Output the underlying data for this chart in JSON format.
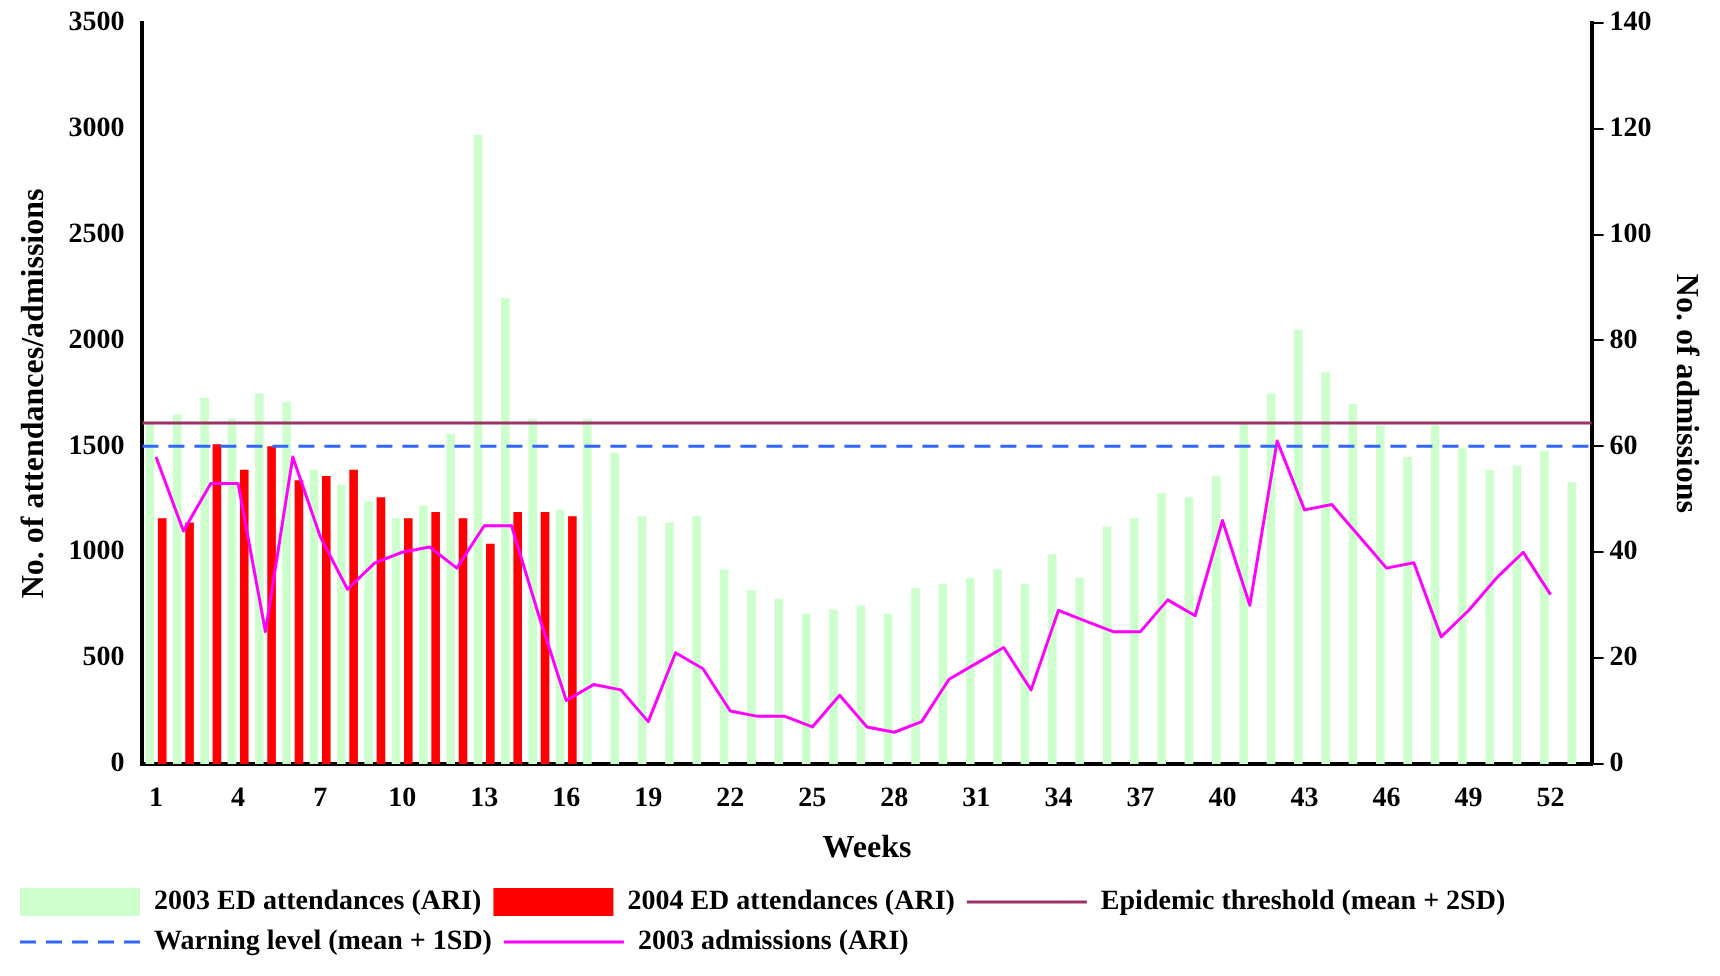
{
  "chart_data": {
    "type": "bar",
    "xlabel": "Weeks",
    "ylabel": "No. of attendances/admissions",
    "y2label": "No. of admissions",
    "categories": [
      "1",
      null,
      null,
      "4",
      null,
      null,
      "7",
      null,
      null,
      "10",
      null,
      null,
      "13",
      null,
      null,
      "16",
      null,
      null,
      "19",
      null,
      null,
      "22",
      null,
      null,
      "25",
      null,
      null,
      "28",
      null,
      null,
      "31",
      null,
      null,
      "34",
      null,
      null,
      "37",
      null,
      null,
      "40",
      null,
      null,
      "43",
      null,
      null,
      "46",
      null,
      null,
      "49",
      null,
      null,
      "52",
      null
    ],
    "series": [
      {
        "name": "2003 ED attendances (ARI)",
        "color": "#ccffcc",
        "values": [
          1610,
          1650,
          1730,
          1630,
          1750,
          1710,
          1390,
          1320,
          1240,
          1160,
          1220,
          1560,
          2970,
          2200,
          1630,
          1200,
          1630,
          1470,
          1170,
          1140,
          1170,
          920,
          820,
          780,
          710,
          730,
          750,
          710,
          830,
          850,
          880,
          920,
          850,
          990,
          880,
          1120,
          1160,
          1280,
          1260,
          1360,
          1610,
          1750,
          2050,
          1850,
          1700,
          1600,
          1450,
          1600,
          1490,
          1390,
          1410,
          1480,
          1330
        ]
      },
      {
        "name": "2004 ED attendances (ARI)",
        "color": "#ff0000",
        "values": [
          1160,
          1140,
          1510,
          1390,
          1500,
          1340,
          1360,
          1390,
          1260,
          1160,
          1190,
          1160,
          1040,
          1190,
          1190,
          1170,
          null,
          null,
          null,
          null,
          null,
          null,
          null,
          null,
          null,
          null,
          null,
          null,
          null,
          null,
          null,
          null,
          null,
          null,
          null,
          null,
          null,
          null,
          null,
          null,
          null,
          null,
          null,
          null,
          null,
          null,
          null,
          null,
          null,
          null,
          null,
          null,
          null
        ]
      },
      {
        "name": "2003 admissions (ARI)",
        "type": "line",
        "axis": "y2",
        "color": "#ff00ff",
        "marker": "none",
        "values": [
          58,
          44,
          53,
          53,
          25,
          58,
          43,
          33,
          38,
          40,
          41,
          37,
          45,
          45,
          28,
          12,
          15,
          14,
          8,
          21,
          18,
          10,
          9,
          9,
          7,
          13,
          7,
          6,
          8,
          16,
          19,
          22,
          14,
          29,
          27,
          25,
          25,
          31,
          28,
          46,
          30,
          61,
          48,
          49,
          43,
          37,
          38,
          24,
          29,
          35,
          40,
          32,
          null
        ]
      }
    ],
    "ref_lines": [
      {
        "axis": "y",
        "value": 1610,
        "label": "Epidemic threshold (mean + 2SD)",
        "color": "#993366",
        "line_style": "solid"
      },
      {
        "axis": "y",
        "value": 1500,
        "label": "Warning level (mean + 1SD)",
        "color": "#3366ff",
        "line_style": "dashed"
      }
    ],
    "ylim": [
      0,
      3500
    ],
    "yticks": [
      0,
      500,
      1000,
      1500,
      2000,
      2500,
      3000,
      3500
    ],
    "y2lim": [
      0,
      140
    ],
    "y2ticks": [
      0,
      20,
      40,
      60,
      80,
      100,
      120,
      140
    ],
    "grid": false,
    "legend": "bottom"
  }
}
